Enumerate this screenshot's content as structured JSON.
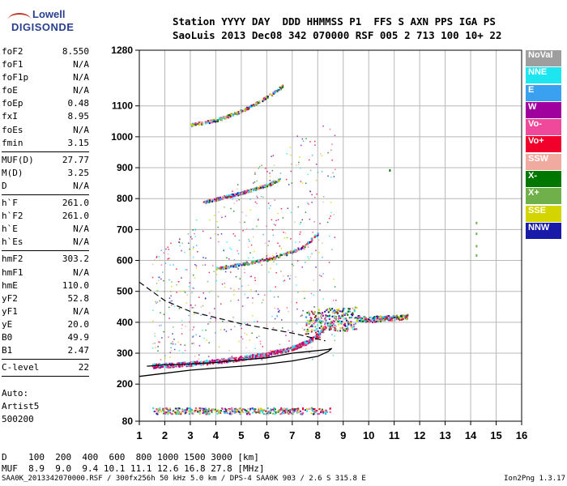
{
  "logo": {
    "line1": "Lowell",
    "line2": "DIGISONDE"
  },
  "header": {
    "labels": "Station YYYY DAY  DDD HHMMSS P1  FFS S AXN PPS IGA PS",
    "values": "SaoLuis 2013 Dec08 342 070000 RSF 005 2 713 100 10+ 22"
  },
  "params_group1": [
    {
      "name": "foF2",
      "value": "8.550"
    },
    {
      "name": "foF1",
      "value": "N/A"
    },
    {
      "name": "foF1p",
      "value": "N/A"
    },
    {
      "name": "foE",
      "value": "N/A"
    },
    {
      "name": "foEp",
      "value": "0.48"
    },
    {
      "name": "fxI",
      "value": "8.95"
    },
    {
      "name": "foEs",
      "value": "N/A"
    },
    {
      "name": "fmin",
      "value": "3.15"
    }
  ],
  "params_group2": [
    {
      "name": "MUF(D)",
      "value": "27.77"
    },
    {
      "name": "M(D)",
      "value": "3.25"
    },
    {
      "name": "D",
      "value": "N/A"
    }
  ],
  "params_group3": [
    {
      "name": "h`F",
      "value": "261.0"
    },
    {
      "name": "h`F2",
      "value": "261.0"
    },
    {
      "name": "h`E",
      "value": "N/A"
    },
    {
      "name": "h`Es",
      "value": "N/A"
    }
  ],
  "params_group4": [
    {
      "name": "hmF2",
      "value": "303.2"
    },
    {
      "name": "hmF1",
      "value": "N/A"
    },
    {
      "name": "hmE",
      "value": "110.0"
    },
    {
      "name": "yF2",
      "value": "52.8"
    },
    {
      "name": "yF1",
      "value": "N/A"
    },
    {
      "name": "yE",
      "value": "20.0"
    },
    {
      "name": "B0",
      "value": "49.9"
    },
    {
      "name": "B1",
      "value": "2.47"
    }
  ],
  "clevel": {
    "name": "C-level",
    "value": "22"
  },
  "auto": {
    "line1": "Auto:",
    "line2": "Artist5",
    "line3": "500200"
  },
  "legend": [
    {
      "label": "NoVal",
      "color": "#9e9e9e"
    },
    {
      "label": "NNE",
      "color": "#1ee6f0"
    },
    {
      "label": "E",
      "color": "#3aa0f0"
    },
    {
      "label": "W",
      "color": "#a0009e"
    },
    {
      "label": "Vo-",
      "color": "#f0489a"
    },
    {
      "label": "Vo+",
      "color": "#f0002a"
    },
    {
      "label": "SSW",
      "color": "#f0aaa0"
    },
    {
      "label": "X-",
      "color": "#007800"
    },
    {
      "label": "X+",
      "color": "#6fb04a"
    },
    {
      "label": "SSE",
      "color": "#d4d400"
    },
    {
      "label": "NNW",
      "color": "#1a1aa8"
    }
  ],
  "bottom": {
    "d_line": "D    100  200  400  600  800 1000 1500 3000 [km]",
    "muf_line": "MUF  8.9  9.0  9.4 10.1 11.1 12.6 16.8 27.8 [MHz]"
  },
  "footer": {
    "left": "SAA0K_2013342070000.RSF / 300fx256h 50 kHz 5.0 km / DPS-4 SAA0K 903 / 2.6 S 315.8 E",
    "right": "Ion2Png 1.3.17"
  },
  "chart_data": {
    "type": "scatter",
    "title": "",
    "xlabel": "",
    "ylabel": "",
    "xlim": [
      1,
      16
    ],
    "ylim": [
      80,
      1280
    ],
    "xticks": [
      1,
      2,
      3,
      4,
      5,
      6,
      7,
      8,
      9,
      10,
      11,
      12,
      13,
      14,
      15,
      16
    ],
    "yticks": [
      80,
      200,
      300,
      400,
      500,
      600,
      700,
      800,
      900,
      1000,
      1100,
      1280
    ],
    "grid": true,
    "traces": [
      {
        "name": "F2 trace",
        "x": [
          1.5,
          2,
          3,
          4,
          5,
          6,
          7,
          7.5,
          8,
          8.3
        ],
        "y": [
          260,
          262,
          268,
          275,
          285,
          298,
          318,
          335,
          360,
          390
        ]
      },
      {
        "name": "2F trace",
        "x": [
          4,
          5,
          6,
          7,
          7.5,
          8
        ],
        "y": [
          575,
          590,
          605,
          630,
          650,
          690
        ]
      },
      {
        "name": "3F trace",
        "x": [
          3.5,
          4,
          5,
          6,
          6.5
        ],
        "y": [
          790,
          800,
          820,
          845,
          865
        ]
      },
      {
        "name": "4F trace",
        "x": [
          3,
          4,
          5,
          6,
          6.6
        ],
        "y": [
          1040,
          1055,
          1085,
          1130,
          1165
        ]
      },
      {
        "name": "spread region",
        "x": [
          7.5,
          8,
          8.5,
          9,
          9.5,
          10,
          10.5,
          11,
          11.5
        ],
        "y": [
          400,
          405,
          410,
          410,
          415,
          410,
          415,
          415,
          420
        ]
      },
      {
        "name": "isolated points",
        "x": [
          10.8,
          14.2,
          14.2,
          14.2,
          14.2
        ],
        "y": [
          895,
          725,
          690,
          650,
          620
        ]
      }
    ],
    "profile_solid": {
      "x": [
        1,
        2,
        3,
        4,
        5,
        6,
        7,
        8,
        8.4,
        8.55,
        8.4,
        7,
        6,
        5,
        4,
        3,
        2,
        1.3
      ],
      "y": [
        225,
        235,
        245,
        252,
        258,
        265,
        275,
        290,
        305,
        315,
        312,
        300,
        285,
        278,
        270,
        265,
        262,
        258
      ]
    },
    "profile_dashed": {
      "x": [
        1,
        2,
        3,
        4,
        5,
        6,
        7,
        8.3
      ],
      "y": [
        530,
        470,
        435,
        415,
        395,
        380,
        365,
        340
      ]
    }
  }
}
